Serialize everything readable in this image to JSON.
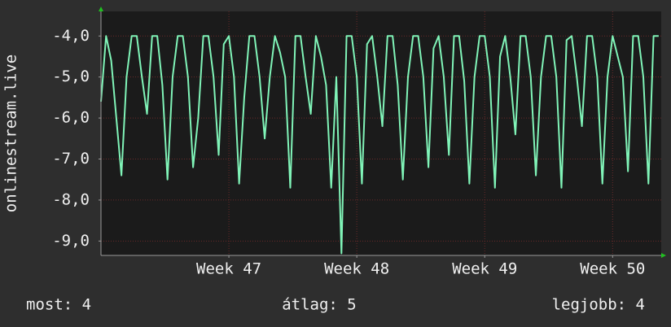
{
  "chart_data": {
    "type": "line",
    "y_label": "onlinestream.live",
    "x": [
      46,
      46.04,
      46.08,
      46.12,
      46.16,
      46.2,
      46.24,
      46.28,
      46.32,
      46.36,
      46.4,
      46.44,
      46.48,
      46.52,
      46.56,
      46.6,
      46.64,
      46.68,
      46.72,
      46.76,
      46.8,
      46.84,
      46.88,
      46.92,
      46.96,
      47,
      47.04,
      47.08,
      47.12,
      47.16,
      47.2,
      47.24,
      47.28,
      47.32,
      47.36,
      47.4,
      47.44,
      47.48,
      47.52,
      47.56,
      47.6,
      47.64,
      47.68,
      47.72,
      47.76,
      47.8,
      47.84,
      47.88,
      47.92,
      47.96,
      48,
      48.04,
      48.08,
      48.12,
      48.16,
      48.2,
      48.24,
      48.28,
      48.32,
      48.36,
      48.4,
      48.44,
      48.48,
      48.52,
      48.56,
      48.6,
      48.64,
      48.68,
      48.72,
      48.76,
      48.8,
      48.84,
      48.88,
      48.92,
      48.96,
      49,
      49.04,
      49.08,
      49.12,
      49.16,
      49.2,
      49.24,
      49.28,
      49.32,
      49.36,
      49.4,
      49.44,
      49.48,
      49.52,
      49.56,
      49.6,
      49.64,
      49.68,
      49.72,
      49.76,
      49.8,
      49.84,
      49.88,
      49.92,
      49.96,
      50,
      50.04,
      50.08,
      50.12,
      50.16,
      50.2,
      50.24,
      50.28,
      50.32,
      50.36
    ],
    "series": [
      {
        "color": "#80f4b8",
        "values": [
          -5.6,
          -4,
          -4.6,
          -6,
          -7.4,
          -5,
          -4,
          -4,
          -5,
          -5.9,
          -4,
          -4,
          -5.2,
          -7.5,
          -5,
          -4,
          -4,
          -5,
          -7.2,
          -6,
          -4,
          -4,
          -5,
          -6.9,
          -4.2,
          -4,
          -5,
          -7.6,
          -5.5,
          -4,
          -4,
          -5,
          -6.5,
          -5,
          -4,
          -4.4,
          -5,
          -7.7,
          -4,
          -4,
          -5,
          -5.9,
          -4,
          -4.5,
          -5.2,
          -7.7,
          -5,
          -9.3,
          -4,
          -4,
          -5,
          -7.6,
          -4.2,
          -4,
          -5,
          -6.2,
          -4,
          -4,
          -5.2,
          -7.5,
          -5,
          -4,
          -4,
          -5,
          -7.2,
          -4.3,
          -4,
          -5,
          -6.9,
          -4,
          -4,
          -5.1,
          -7.6,
          -5,
          -4,
          -4,
          -5,
          -7.7,
          -4.5,
          -4,
          -5,
          -6.4,
          -4,
          -4,
          -5,
          -7.4,
          -5,
          -4,
          -4,
          -5,
          -7.7,
          -4.1,
          -4,
          -5,
          -6.2,
          -4,
          -4,
          -5,
          -7.6,
          -5,
          -4,
          -4.5,
          -5,
          -7.3,
          -4,
          -4,
          -5,
          -7.6,
          -4,
          -4
        ]
      }
    ],
    "xlim": [
      46,
      50.38
    ],
    "xticks": [
      {
        "value": 47,
        "label": "Week 47"
      },
      {
        "value": 48,
        "label": "Week 48"
      },
      {
        "value": 49,
        "label": "Week 49"
      },
      {
        "value": 50,
        "label": "Week 50"
      }
    ],
    "ylim": [
      -9.35,
      -3.4
    ],
    "yticks": [
      {
        "value": -9,
        "label": "-9,0"
      },
      {
        "value": -8,
        "label": "-8,0"
      },
      {
        "value": -7,
        "label": "-7,0"
      },
      {
        "value": -6,
        "label": "-6,0"
      },
      {
        "value": -5,
        "label": "-5,0"
      },
      {
        "value": -4,
        "label": "-4,0"
      }
    ],
    "grid": true,
    "legend": [
      "most: 4",
      "átlag: 5",
      "legjobb: 4"
    ]
  }
}
